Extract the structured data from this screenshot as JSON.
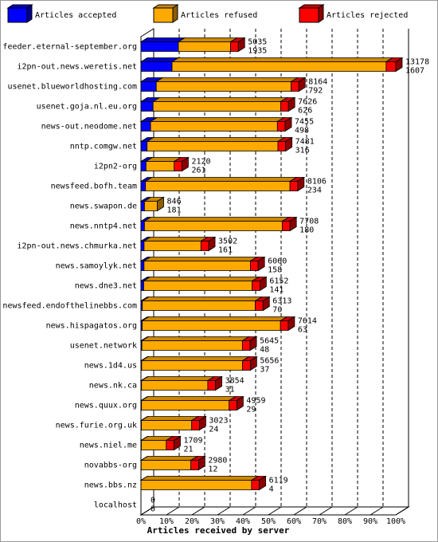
{
  "chart_data": {
    "type": "bar",
    "orientation": "horizontal",
    "stacked": true,
    "three_d": true,
    "x_label": "Articles received by server",
    "categories": [
      "feeder.eternal-september.org",
      "i2pn-out.news.weretis.net",
      "usenet.blueworldhosting.com",
      "usenet.goja.nl.eu.org",
      "news-out.neodome.net",
      "nntp.comgw.net",
      "i2pn2-org",
      "newsfeed.bofh.team",
      "news.swapon.de",
      "news.nntp4.net",
      "i2pn-out.news.chmurka.net",
      "news.samoylyk.net",
      "news.dne3.net",
      "newsfeed.endofthelinebbs.com",
      "news.hispagatos.org",
      "usenet.network",
      "news.1d4.us",
      "news.nk.ca",
      "news.quux.org",
      "news.furie.org.uk",
      "news.niel.me",
      "novabbs-org",
      "news.bbs.nz",
      "localhost"
    ],
    "totals": [
      5035,
      13178,
      8164,
      7626,
      7455,
      7481,
      2120,
      8106,
      846,
      7708,
      3502,
      6060,
      6152,
      6313,
      7614,
      5645,
      5656,
      3854,
      4959,
      3023,
      1709,
      2980,
      6119,
      0
    ],
    "series": [
      {
        "name": "Articles accepted",
        "color": "#0000ff",
        "values": [
          1935,
          1607,
          792,
          626,
          498,
          316,
          261,
          234,
          181,
          180,
          161,
          158,
          141,
          70,
          63,
          48,
          37,
          31,
          29,
          24,
          21,
          12,
          4,
          0
        ]
      },
      {
        "name": "Articles refused",
        "color": "#ffaa00",
        "values": [
          2700,
          11071,
          6972,
          6600,
          6557,
          6765,
          1459,
          7472,
          665,
          7128,
          2941,
          5502,
          5611,
          5843,
          7151,
          5197,
          5219,
          3423,
          4530,
          2599,
          1288,
          2568,
          5715,
          0
        ]
      },
      {
        "name": "Articles rejected",
        "color": "#ff0000",
        "values": [
          400,
          500,
          400,
          400,
          400,
          400,
          400,
          400,
          0,
          400,
          400,
          400,
          400,
          400,
          400,
          400,
          400,
          400,
          400,
          400,
          400,
          400,
          400,
          0
        ]
      }
    ],
    "xlim": [
      0,
      13178
    ],
    "xticks": [
      {
        "value": 0,
        "label": "0%"
      },
      {
        "value": 1317.8,
        "label": "10%"
      },
      {
        "value": 2635.6,
        "label": "20%"
      },
      {
        "value": 3953.4,
        "label": "30%"
      },
      {
        "value": 5271.2,
        "label": "40%"
      },
      {
        "value": 6589,
        "label": "50%"
      },
      {
        "value": 7906.8,
        "label": "60%"
      },
      {
        "value": 9224.6,
        "label": "70%"
      },
      {
        "value": 10542.4,
        "label": "80%"
      },
      {
        "value": 11860.2,
        "label": "90%"
      },
      {
        "value": 13178,
        "label": "100%"
      }
    ],
    "grid": true,
    "legend": "top"
  }
}
